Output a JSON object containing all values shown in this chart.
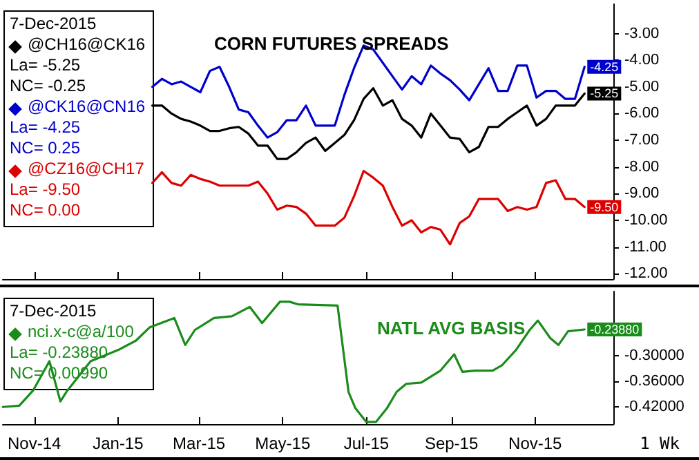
{
  "chart_data": [
    {
      "type": "line",
      "title": "CORN FUTURES SPREADS",
      "x": [
        "2015-01-26",
        "2015-02-02",
        "2015-02-09",
        "2015-02-16",
        "2015-02-23",
        "2015-03-02",
        "2015-03-09",
        "2015-03-16",
        "2015-03-23",
        "2015-03-30",
        "2015-04-06",
        "2015-04-13",
        "2015-04-20",
        "2015-04-27",
        "2015-05-04",
        "2015-05-11",
        "2015-05-18",
        "2015-05-25",
        "2015-06-01",
        "2015-06-08",
        "2015-06-15",
        "2015-06-22",
        "2015-06-29",
        "2015-07-06",
        "2015-07-13",
        "2015-07-20",
        "2015-07-27",
        "2015-08-03",
        "2015-08-10",
        "2015-08-17",
        "2015-08-24",
        "2015-08-31",
        "2015-09-07",
        "2015-09-14",
        "2015-09-21",
        "2015-09-28",
        "2015-10-05",
        "2015-10-12",
        "2015-10-19",
        "2015-10-26",
        "2015-11-02",
        "2015-11-09",
        "2015-11-16",
        "2015-11-23",
        "2015-11-30",
        "2015-12-07"
      ],
      "series": [
        {
          "name": "@CH16@CK16",
          "color": "#000000",
          "values": [
            -5.7,
            -5.7,
            -6.0,
            -6.2,
            -6.3,
            -6.45,
            -6.65,
            -6.65,
            -6.55,
            -6.5,
            -6.75,
            -7.2,
            -7.2,
            -7.7,
            -7.7,
            -7.45,
            -7.1,
            -6.9,
            -7.4,
            -7.1,
            -6.8,
            -6.25,
            -5.45,
            -5.05,
            -5.7,
            -5.5,
            -6.2,
            -6.45,
            -6.9,
            -6.0,
            -6.45,
            -6.9,
            -6.95,
            -7.45,
            -7.25,
            -6.5,
            -6.5,
            -6.2,
            -5.95,
            -5.7,
            -6.45,
            -6.2,
            -5.7,
            -5.7,
            -5.7,
            -5.25
          ],
          "value_labels": [
            null,
            null,
            null,
            null,
            null,
            null,
            null,
            null,
            null,
            null,
            null,
            null,
            null,
            null,
            null,
            null,
            null,
            null,
            null,
            null,
            null,
            null,
            null,
            null,
            null,
            null,
            null,
            null,
            null,
            null,
            null,
            null,
            null,
            null,
            null,
            null,
            null,
            null,
            null,
            null,
            null,
            null,
            null,
            null,
            null,
            "-5.25"
          ]
        },
        {
          "name": "@CK16@CN16",
          "color": "#0000cc",
          "values": [
            -5.0,
            -4.7,
            -4.9,
            -4.8,
            -5.0,
            -5.2,
            -4.4,
            -4.25,
            -5.0,
            -5.85,
            -5.95,
            -6.45,
            -6.9,
            -6.7,
            -6.25,
            -6.25,
            -5.7,
            -6.45,
            -6.45,
            -6.45,
            -5.3,
            -4.3,
            -3.45,
            -3.6,
            -4.1,
            -4.6,
            -5.1,
            -4.6,
            -4.9,
            -4.2,
            -4.5,
            -4.75,
            -5.1,
            -5.5,
            -4.9,
            -4.3,
            -5.15,
            -5.15,
            -4.2,
            -4.2,
            -5.4,
            -5.15,
            -5.15,
            -5.45,
            -5.45,
            -4.25
          ],
          "value_labels": [
            null,
            null,
            null,
            null,
            null,
            null,
            null,
            null,
            null,
            null,
            null,
            null,
            null,
            null,
            null,
            null,
            null,
            null,
            null,
            null,
            null,
            null,
            null,
            null,
            null,
            null,
            null,
            null,
            null,
            null,
            null,
            null,
            null,
            null,
            null,
            null,
            null,
            null,
            null,
            null,
            null,
            null,
            null,
            null,
            null,
            "-4.25"
          ]
        },
        {
          "name": "@CZ16@CH17",
          "color": "#dd0000",
          "values": [
            -8.6,
            -8.2,
            -8.6,
            -8.7,
            -8.3,
            -8.45,
            -8.55,
            -8.7,
            -8.7,
            -8.7,
            -8.7,
            -8.55,
            -9.0,
            -9.6,
            -9.45,
            -9.5,
            -9.75,
            -10.2,
            -10.2,
            -10.2,
            -9.9,
            -9.1,
            -8.15,
            -8.4,
            -8.7,
            -9.5,
            -10.2,
            -10.0,
            -10.45,
            -10.25,
            -10.35,
            -10.9,
            -10.1,
            -9.85,
            -9.2,
            -9.2,
            -9.2,
            -9.65,
            -9.5,
            -9.6,
            -9.5,
            -8.6,
            -8.5,
            -9.2,
            -9.2,
            -9.5
          ],
          "value_labels": [
            null,
            null,
            null,
            null,
            null,
            null,
            null,
            null,
            null,
            null,
            null,
            null,
            null,
            null,
            null,
            null,
            null,
            null,
            null,
            null,
            null,
            null,
            null,
            null,
            null,
            null,
            null,
            null,
            null,
            null,
            null,
            null,
            null,
            null,
            null,
            null,
            null,
            null,
            null,
            null,
            null,
            null,
            null,
            null,
            null,
            "-9.50"
          ]
        }
      ],
      "xlim": [
        "2014-10-09",
        "2015-12-28"
      ],
      "xticks": [
        {
          "value": "2014-11-01",
          "label": null
        },
        {
          "value": "2015-01-01",
          "label": null
        },
        {
          "value": "2015-03-01",
          "label": null
        },
        {
          "value": "2015-05-01",
          "label": null
        },
        {
          "value": "2015-07-01",
          "label": null
        },
        {
          "value": "2015-09-01",
          "label": null
        },
        {
          "value": "2015-11-01",
          "label": null
        }
      ],
      "ylim": [
        -12.2,
        -1.9
      ],
      "yticks": [
        {
          "value": -3,
          "label": "-3.00"
        },
        {
          "value": -4,
          "label": "-4.00"
        },
        {
          "value": -5,
          "label": "-5.00"
        },
        {
          "value": -6,
          "label": "-6.00"
        },
        {
          "value": -7,
          "label": "-7.00"
        },
        {
          "value": -8,
          "label": "-8.00"
        },
        {
          "value": -9,
          "label": "-9.00"
        },
        {
          "value": -10,
          "label": "-10.00"
        },
        {
          "value": -11,
          "label": "-11.00"
        },
        {
          "value": -12,
          "label": "-12.00"
        }
      ],
      "tick_labels": "y",
      "legend": "top left",
      "marker": "none",
      "grid": false,
      "annotations": [
        "7-Dec-2015",
        "La= -5.25",
        "NC= -0.25",
        "La= -4.25",
        "NC= 0.25",
        "La= -9.50",
        "NC= 0.00"
      ]
    },
    {
      "type": "line",
      "title": "NATL AVG BASIS",
      "x": [
        "2014-10-09",
        "2014-10-21",
        "2014-10-31",
        "2014-11-12",
        "2014-11-20",
        "2014-11-25",
        "2014-12-12",
        "2015-01-01",
        "2015-01-14",
        "2015-01-24",
        "2015-02-11",
        "2015-02-19",
        "2015-02-26",
        "2015-03-12",
        "2015-03-25",
        "2015-04-07",
        "2015-04-16",
        "2015-04-29",
        "2015-05-06",
        "2015-05-12",
        "2015-06-10",
        "2015-06-18",
        "2015-06-23",
        "2015-07-01",
        "2015-07-08",
        "2015-07-16",
        "2015-07-23",
        "2015-07-30",
        "2015-08-10",
        "2015-08-24",
        "2015-09-03",
        "2015-09-09",
        "2015-09-18",
        "2015-10-01",
        "2015-10-08",
        "2015-10-18",
        "2015-10-28",
        "2015-11-03",
        "2015-11-12",
        "2015-11-18",
        "2015-11-25",
        "2015-12-07"
      ],
      "series": [
        {
          "name": "nci.x-c@a/100",
          "color": "#1a8c1a",
          "values": [
            -0.42,
            -0.417,
            -0.382,
            -0.313,
            -0.407,
            -0.382,
            -0.313,
            -0.287,
            -0.265,
            -0.234,
            -0.212,
            -0.275,
            -0.24,
            -0.212,
            -0.208,
            -0.186,
            -0.224,
            -0.174,
            -0.174,
            -0.18,
            -0.183,
            -0.385,
            -0.423,
            -0.455,
            -0.455,
            -0.423,
            -0.385,
            -0.366,
            -0.363,
            -0.335,
            -0.297,
            -0.338,
            -0.335,
            -0.335,
            -0.322,
            -0.287,
            -0.24,
            -0.218,
            -0.259,
            -0.275,
            -0.243,
            -0.2388
          ],
          "value_labels": [
            null,
            null,
            null,
            null,
            null,
            null,
            null,
            null,
            null,
            null,
            null,
            null,
            null,
            null,
            null,
            null,
            null,
            null,
            null,
            null,
            null,
            null,
            null,
            null,
            null,
            null,
            null,
            null,
            null,
            null,
            null,
            null,
            null,
            null,
            null,
            null,
            null,
            null,
            null,
            null,
            null,
            "-0.23880"
          ]
        }
      ],
      "xlim": [
        "2014-10-09",
        "2015-12-28"
      ],
      "xticks": [
        {
          "value": "2014-11-01",
          "label": "Nov-14"
        },
        {
          "value": "2015-01-01",
          "label": "Jan-15"
        },
        {
          "value": "2015-03-01",
          "label": "Mar-15"
        },
        {
          "value": "2015-05-01",
          "label": "May-15"
        },
        {
          "value": "2015-07-01",
          "label": "Jul-15"
        },
        {
          "value": "2015-09-01",
          "label": "Sep-15"
        },
        {
          "value": "2015-11-01",
          "label": "Nov-15"
        }
      ],
      "ylim": [
        -0.46,
        -0.15
      ],
      "yticks": [
        {
          "value": -0.3,
          "label": "-0.30000"
        },
        {
          "value": -0.36,
          "label": "-0.36000"
        },
        {
          "value": -0.42,
          "label": "-0.42000"
        }
      ],
      "legend": "top left",
      "marker": "none",
      "grid": false,
      "annotations": [
        "7-Dec-2015",
        "La= -0.23880",
        "NC= 0.00990",
        "1 Wk"
      ]
    }
  ]
}
